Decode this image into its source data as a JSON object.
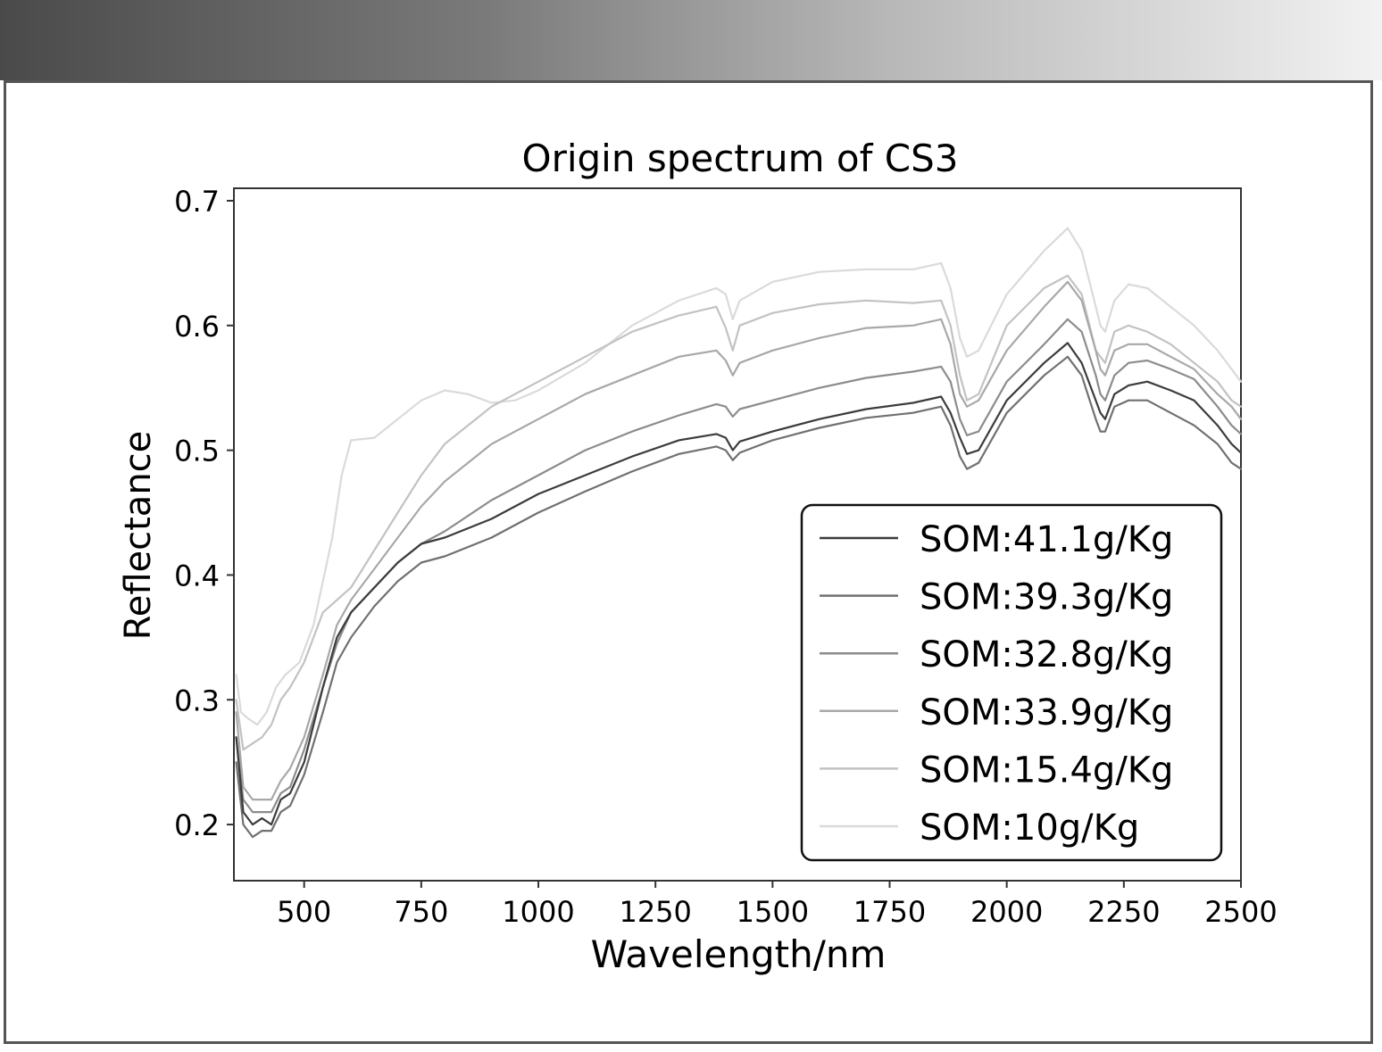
{
  "chart_data": {
    "type": "line",
    "title": "Origin spectrum of CS3",
    "xlabel": "Wavelength/nm",
    "ylabel": "Reflectance",
    "xlim": [
      350,
      2500
    ],
    "ylim": [
      0.155,
      0.71
    ],
    "xticks": [
      500,
      750,
      1000,
      1250,
      1500,
      1750,
      2000,
      2250,
      2500
    ],
    "yticks": [
      0.2,
      0.3,
      0.4,
      0.5,
      0.6,
      0.7
    ],
    "legend_position": "lower-right",
    "series": [
      {
        "name": "SOM:41.1g/Kg",
        "color": "#3c3c3c",
        "width": 2.2,
        "x": [
          355,
          370,
          390,
          410,
          430,
          450,
          470,
          500,
          540,
          570,
          600,
          650,
          700,
          750,
          800,
          900,
          1000,
          1100,
          1200,
          1300,
          1380,
          1400,
          1415,
          1430,
          1500,
          1600,
          1700,
          1800,
          1860,
          1880,
          1900,
          1915,
          1940,
          2000,
          2080,
          2130,
          2160,
          2190,
          2200,
          2210,
          2230,
          2260,
          2300,
          2350,
          2400,
          2450,
          2480,
          2500
        ],
        "y": [
          0.27,
          0.21,
          0.2,
          0.205,
          0.2,
          0.22,
          0.225,
          0.25,
          0.31,
          0.35,
          0.37,
          0.39,
          0.41,
          0.425,
          0.43,
          0.445,
          0.465,
          0.48,
          0.495,
          0.508,
          0.513,
          0.51,
          0.5,
          0.507,
          0.515,
          0.525,
          0.533,
          0.538,
          0.543,
          0.53,
          0.51,
          0.497,
          0.5,
          0.54,
          0.57,
          0.586,
          0.57,
          0.54,
          0.53,
          0.525,
          0.545,
          0.552,
          0.555,
          0.548,
          0.54,
          0.52,
          0.505,
          0.498
        ]
      },
      {
        "name": "SOM:39.3g/Kg",
        "color": "#707070",
        "width": 2.2,
        "x": [
          355,
          370,
          390,
          410,
          430,
          450,
          470,
          500,
          540,
          570,
          600,
          650,
          700,
          750,
          800,
          900,
          1000,
          1100,
          1200,
          1300,
          1380,
          1400,
          1415,
          1430,
          1500,
          1600,
          1700,
          1800,
          1860,
          1880,
          1900,
          1915,
          1940,
          2000,
          2080,
          2130,
          2160,
          2190,
          2200,
          2210,
          2230,
          2260,
          2300,
          2350,
          2400,
          2450,
          2480,
          2500
        ],
        "y": [
          0.25,
          0.2,
          0.19,
          0.195,
          0.195,
          0.21,
          0.215,
          0.24,
          0.29,
          0.33,
          0.35,
          0.375,
          0.395,
          0.41,
          0.415,
          0.43,
          0.45,
          0.467,
          0.483,
          0.497,
          0.503,
          0.5,
          0.492,
          0.498,
          0.508,
          0.518,
          0.526,
          0.53,
          0.535,
          0.52,
          0.495,
          0.485,
          0.49,
          0.53,
          0.56,
          0.575,
          0.56,
          0.525,
          0.515,
          0.515,
          0.535,
          0.54,
          0.54,
          0.53,
          0.52,
          0.505,
          0.49,
          0.485
        ]
      },
      {
        "name": "SOM:32.8g/Kg",
        "color": "#8c8c8c",
        "width": 2.2,
        "x": [
          355,
          370,
          390,
          410,
          430,
          450,
          470,
          500,
          540,
          570,
          600,
          650,
          700,
          750,
          800,
          900,
          1000,
          1100,
          1200,
          1300,
          1380,
          1400,
          1415,
          1430,
          1500,
          1600,
          1700,
          1800,
          1860,
          1880,
          1900,
          1915,
          1940,
          2000,
          2080,
          2130,
          2160,
          2190,
          2200,
          2210,
          2230,
          2260,
          2300,
          2350,
          2400,
          2450,
          2480,
          2500
        ],
        "y": [
          0.27,
          0.22,
          0.21,
          0.21,
          0.21,
          0.225,
          0.23,
          0.26,
          0.31,
          0.345,
          0.37,
          0.39,
          0.41,
          0.425,
          0.435,
          0.46,
          0.48,
          0.5,
          0.515,
          0.528,
          0.537,
          0.535,
          0.527,
          0.533,
          0.54,
          0.55,
          0.558,
          0.563,
          0.567,
          0.555,
          0.525,
          0.512,
          0.515,
          0.555,
          0.585,
          0.605,
          0.595,
          0.56,
          0.545,
          0.54,
          0.56,
          0.57,
          0.572,
          0.565,
          0.557,
          0.535,
          0.52,
          0.513
        ]
      },
      {
        "name": "SOM:33.9g/Kg",
        "color": "#a8a8a8",
        "width": 2.2,
        "x": [
          355,
          370,
          390,
          410,
          430,
          450,
          470,
          500,
          540,
          570,
          600,
          650,
          700,
          750,
          800,
          900,
          1000,
          1100,
          1200,
          1300,
          1380,
          1400,
          1415,
          1430,
          1500,
          1600,
          1700,
          1800,
          1860,
          1880,
          1900,
          1915,
          1940,
          2000,
          2080,
          2130,
          2160,
          2190,
          2200,
          2210,
          2230,
          2260,
          2300,
          2350,
          2400,
          2450,
          2480,
          2500
        ],
        "y": [
          0.29,
          0.23,
          0.22,
          0.22,
          0.22,
          0.235,
          0.245,
          0.27,
          0.32,
          0.36,
          0.38,
          0.405,
          0.43,
          0.455,
          0.475,
          0.505,
          0.525,
          0.545,
          0.56,
          0.575,
          0.58,
          0.572,
          0.56,
          0.57,
          0.58,
          0.59,
          0.598,
          0.6,
          0.605,
          0.585,
          0.545,
          0.535,
          0.54,
          0.58,
          0.615,
          0.635,
          0.62,
          0.58,
          0.565,
          0.56,
          0.58,
          0.585,
          0.585,
          0.575,
          0.565,
          0.545,
          0.535,
          0.525
        ]
      },
      {
        "name": "SOM:15.4g/Kg",
        "color": "#c2c2c2",
        "width": 2.2,
        "x": [
          355,
          370,
          390,
          410,
          430,
          450,
          470,
          500,
          540,
          570,
          600,
          650,
          700,
          750,
          800,
          900,
          1000,
          1100,
          1200,
          1300,
          1380,
          1400,
          1415,
          1430,
          1500,
          1600,
          1700,
          1800,
          1860,
          1880,
          1900,
          1915,
          1940,
          2000,
          2080,
          2130,
          2160,
          2190,
          2200,
          2210,
          2230,
          2260,
          2300,
          2350,
          2400,
          2450,
          2480,
          2500
        ],
        "y": [
          0.3,
          0.26,
          0.265,
          0.27,
          0.28,
          0.3,
          0.31,
          0.33,
          0.37,
          0.38,
          0.39,
          0.42,
          0.45,
          0.48,
          0.505,
          0.535,
          0.555,
          0.575,
          0.595,
          0.608,
          0.615,
          0.598,
          0.58,
          0.6,
          0.61,
          0.617,
          0.62,
          0.618,
          0.62,
          0.6,
          0.56,
          0.54,
          0.545,
          0.6,
          0.63,
          0.64,
          0.625,
          0.58,
          0.575,
          0.57,
          0.595,
          0.6,
          0.595,
          0.585,
          0.57,
          0.555,
          0.54,
          0.535
        ]
      },
      {
        "name": "SOM:10g/Kg",
        "color": "#dadada",
        "width": 2.2,
        "x": [
          355,
          365,
          380,
          400,
          420,
          440,
          460,
          490,
          520,
          560,
          580,
          600,
          650,
          700,
          750,
          800,
          850,
          900,
          950,
          1000,
          1100,
          1200,
          1300,
          1380,
          1400,
          1415,
          1430,
          1500,
          1600,
          1700,
          1800,
          1860,
          1880,
          1900,
          1915,
          1940,
          2000,
          2080,
          2130,
          2160,
          2190,
          2200,
          2210,
          2230,
          2260,
          2300,
          2350,
          2400,
          2450,
          2480,
          2500
        ],
        "y": [
          0.32,
          0.29,
          0.285,
          0.28,
          0.29,
          0.31,
          0.32,
          0.33,
          0.36,
          0.43,
          0.48,
          0.508,
          0.51,
          0.525,
          0.54,
          0.548,
          0.545,
          0.538,
          0.54,
          0.548,
          0.57,
          0.6,
          0.62,
          0.63,
          0.625,
          0.605,
          0.62,
          0.635,
          0.643,
          0.645,
          0.645,
          0.65,
          0.63,
          0.59,
          0.575,
          0.58,
          0.625,
          0.66,
          0.678,
          0.66,
          0.615,
          0.6,
          0.595,
          0.62,
          0.633,
          0.63,
          0.615,
          0.6,
          0.58,
          0.565,
          0.555
        ]
      }
    ]
  }
}
